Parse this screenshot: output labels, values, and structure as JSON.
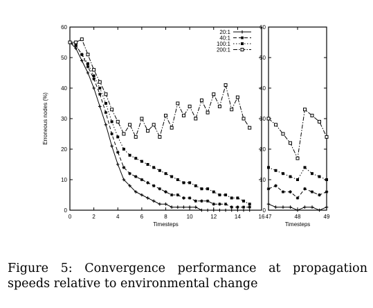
{
  "caption": {
    "label": "Figure 5:",
    "text": "Convergence performance at propagation speeds relative to environmental change"
  },
  "chart_data": {
    "type": "line",
    "ylabel": "Erroneous nodes (%)",
    "grid": false,
    "legend_position": "top-right",
    "panels": [
      {
        "id": "main",
        "xlabel": "Timesteps",
        "xlim": [
          0,
          16
        ],
        "ylim": [
          0,
          60
        ],
        "xticks": [
          0,
          2,
          4,
          6,
          8,
          10,
          12,
          14,
          16
        ],
        "yticks": [
          0,
          10,
          20,
          30,
          40,
          50,
          60
        ],
        "series": [
          {
            "name": "20:1",
            "style": "solid",
            "marker": "plus",
            "x": [
              0,
              0.5,
              1,
              1.5,
              2,
              2.5,
              3,
              3.5,
              4,
              4.5,
              5,
              5.5,
              6,
              6.5,
              7,
              7.5,
              8,
              8.5,
              9,
              9.5,
              10,
              10.5,
              11,
              11.5,
              12,
              12.5,
              13,
              13.5,
              14,
              14.5,
              15
            ],
            "y": [
              55,
              53,
              49,
              45,
              40,
              34,
              28,
              21,
              15,
              10,
              8,
              6,
              5,
              4,
              3,
              2,
              2,
              1,
              1,
              1,
              1,
              1,
              0,
              0,
              0,
              0,
              0,
              0,
              0,
              0,
              0
            ]
          },
          {
            "name": "40:1",
            "style": "dashed",
            "marker": "star",
            "x": [
              0,
              0.5,
              1,
              1.5,
              2,
              2.5,
              3,
              3.5,
              4,
              4.5,
              5,
              5.5,
              6,
              6.5,
              7,
              7.5,
              8,
              8.5,
              9,
              9.5,
              10,
              10.5,
              11,
              11.5,
              12,
              12.5,
              13,
              13.5,
              14,
              14.5,
              15
            ],
            "y": [
              55,
              54,
              51,
              47,
              43,
              38,
              32,
              25,
              19,
              14,
              12,
              11,
              10,
              9,
              8,
              7,
              6,
              5,
              5,
              4,
              4,
              3,
              3,
              3,
              2,
              2,
              2,
              1,
              1,
              1,
              1
            ]
          },
          {
            "name": "100:1",
            "style": "dotted",
            "marker": "square",
            "x": [
              0,
              0.5,
              1,
              1.5,
              2,
              2.5,
              3,
              3.5,
              4,
              4.5,
              5,
              5.5,
              6,
              6.5,
              7,
              7.5,
              8,
              8.5,
              9,
              9.5,
              10,
              10.5,
              11,
              11.5,
              12,
              12.5,
              13,
              13.5,
              14,
              14.5,
              15
            ],
            "y": [
              55,
              54,
              51,
              48,
              44,
              40,
              35,
              29,
              24,
              20,
              18,
              17,
              16,
              15,
              14,
              13,
              12,
              11,
              10,
              9,
              9,
              8,
              7,
              7,
              6,
              5,
              5,
              4,
              4,
              3,
              2
            ]
          },
          {
            "name": "200:1",
            "style": "dashdot",
            "marker": "circle",
            "x": [
              0,
              0.5,
              1,
              1.5,
              2,
              2.5,
              3,
              3.5,
              4,
              4.5,
              5,
              5.5,
              6,
              6.5,
              7,
              7.5,
              8,
              8.5,
              9,
              9.5,
              10,
              10.5,
              11,
              11.5,
              12,
              12.5,
              13,
              13.5,
              14,
              14.5,
              15
            ],
            "y": [
              55,
              55,
              56,
              51,
              46,
              42,
              38,
              33,
              29,
              25,
              28,
              24,
              30,
              26,
              28,
              24,
              31,
              27,
              35,
              31,
              34,
              30,
              36,
              32,
              38,
              34,
              41,
              33,
              37,
              30,
              27
            ]
          }
        ]
      },
      {
        "id": "inset",
        "xlabel": "Timesteps",
        "xlim": [
          47,
          49
        ],
        "ylim": [
          0,
          60
        ],
        "xticks": [
          47,
          48,
          49
        ],
        "yticks": [
          0,
          10,
          20,
          30,
          40,
          50,
          60
        ],
        "series": [
          {
            "name": "20:1",
            "x": [
              47,
              47.25,
              47.5,
              47.75,
              48,
              48.25,
              48.5,
              48.75,
              49
            ],
            "y": [
              2,
              1,
              1,
              1,
              0,
              1,
              1,
              0,
              1
            ]
          },
          {
            "name": "40:1",
            "x": [
              47,
              47.25,
              47.5,
              47.75,
              48,
              48.25,
              48.5,
              48.75,
              49
            ],
            "y": [
              7,
              8,
              6,
              6,
              4,
              7,
              6,
              5,
              6
            ]
          },
          {
            "name": "100:1",
            "x": [
              47,
              47.25,
              47.5,
              47.75,
              48,
              48.25,
              48.5,
              48.75,
              49
            ],
            "y": [
              14,
              13,
              12,
              11,
              10,
              14,
              12,
              11,
              10
            ]
          },
          {
            "name": "200:1",
            "x": [
              47,
              47.25,
              47.5,
              47.75,
              48,
              48.25,
              48.5,
              48.75,
              49
            ],
            "y": [
              30,
              28,
              25,
              22,
              17,
              33,
              31,
              29,
              24
            ]
          }
        ]
      }
    ]
  }
}
